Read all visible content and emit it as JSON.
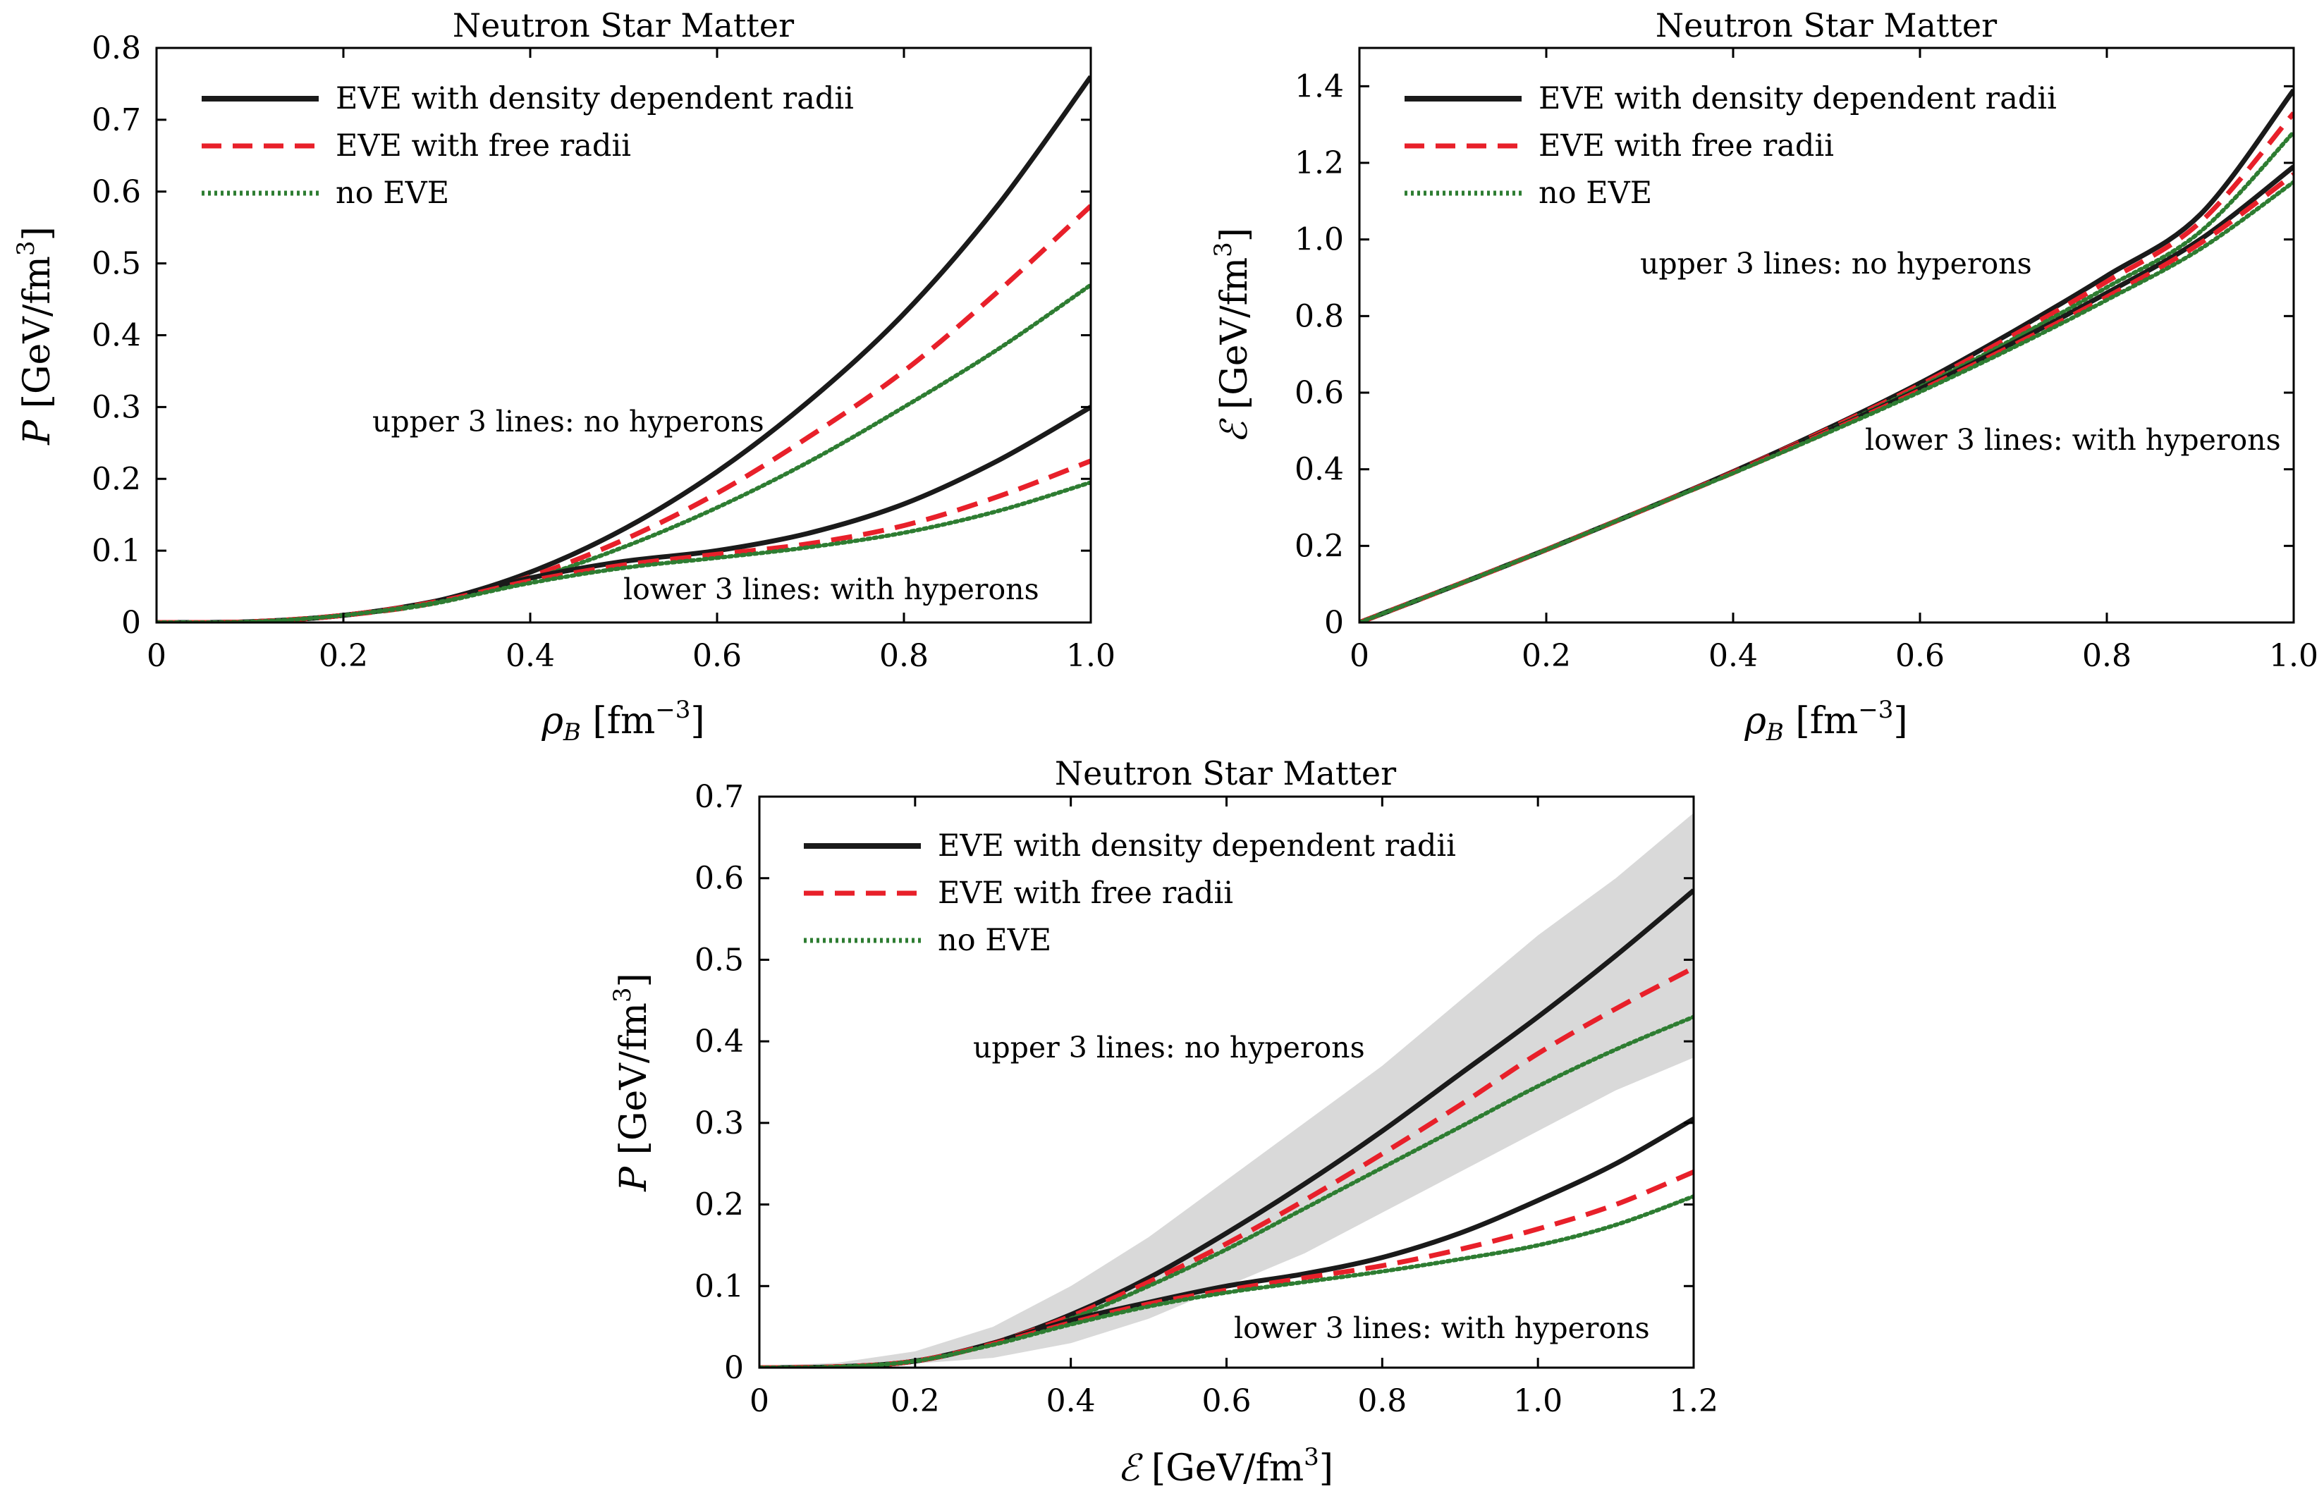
{
  "chart_data": [
    {
      "type": "line",
      "title": "Neutron Star Matter",
      "xlabel": "ρB [fm⁻³]",
      "ylabel": "P [GeV/fm³]",
      "xlim": [
        0,
        1.0
      ],
      "ylim": [
        0,
        0.8
      ],
      "xticks": [
        "0",
        "0.2",
        "0.4",
        "0.6",
        "0.8",
        "1.0"
      ],
      "yticks": [
        "0",
        "0.1",
        "0.2",
        "0.3",
        "0.4",
        "0.5",
        "0.6",
        "0.7",
        "0.8"
      ],
      "legend": {
        "position": "top-left",
        "entries": [
          "EVE with density dependent radii",
          "EVE with free radii",
          "no EVE"
        ]
      },
      "annotations": [
        "upper 3 lines: no hyperons",
        "lower 3 lines: with hyperons"
      ],
      "x": [
        0,
        0.1,
        0.2,
        0.3,
        0.4,
        0.5,
        0.6,
        0.7,
        0.8,
        0.9,
        1.0
      ],
      "series": [
        {
          "name": "EVE with density dependent radii",
          "group": "no hyperons",
          "style": "solid",
          "color": "#1a1a1a",
          "values": [
            0,
            0.001,
            0.01,
            0.03,
            0.07,
            0.13,
            0.21,
            0.31,
            0.43,
            0.58,
            0.76
          ]
        },
        {
          "name": "EVE with free radii",
          "group": "no hyperons",
          "style": "dashed",
          "color": "#e8202a",
          "values": [
            0,
            0.001,
            0.01,
            0.028,
            0.064,
            0.115,
            0.18,
            0.26,
            0.35,
            0.46,
            0.58
          ]
        },
        {
          "name": "no EVE",
          "group": "no hyperons",
          "style": "dotted",
          "color": "#2e7d32",
          "values": [
            0,
            0.001,
            0.01,
            0.027,
            0.06,
            0.105,
            0.16,
            0.225,
            0.3,
            0.38,
            0.47
          ]
        },
        {
          "name": "EVE with density dependent radii",
          "group": "with hyperons",
          "style": "solid",
          "color": "#1a1a1a",
          "values": [
            0,
            0.001,
            0.01,
            0.03,
            0.062,
            0.085,
            0.1,
            0.125,
            0.165,
            0.225,
            0.3
          ]
        },
        {
          "name": "EVE with free radii",
          "group": "with hyperons",
          "style": "dashed",
          "color": "#e8202a",
          "values": [
            0,
            0.001,
            0.01,
            0.029,
            0.058,
            0.08,
            0.095,
            0.11,
            0.135,
            0.175,
            0.225
          ]
        },
        {
          "name": "no EVE",
          "group": "with hyperons",
          "style": "dotted",
          "color": "#2e7d32",
          "values": [
            0,
            0.001,
            0.01,
            0.028,
            0.055,
            0.076,
            0.09,
            0.105,
            0.125,
            0.155,
            0.195
          ]
        }
      ]
    },
    {
      "type": "line",
      "title": "Neutron Star Matter",
      "xlabel": "ρB [fm⁻³]",
      "ylabel": "ℰ [GeV/fm³]",
      "xlim": [
        0,
        1.0
      ],
      "ylim": [
        0,
        1.5
      ],
      "xticks": [
        "0",
        "0.2",
        "0.4",
        "0.6",
        "0.8",
        "1.0"
      ],
      "yticks": [
        "0",
        "0.2",
        "0.4",
        "0.6",
        "0.8",
        "1.0",
        "1.2",
        "1.4"
      ],
      "legend": {
        "position": "top-left",
        "entries": [
          "EVE with density dependent radii",
          "EVE with free radii",
          "no EVE"
        ]
      },
      "annotations": [
        "upper 3 lines: no hyperons",
        "lower 3 lines: with hyperons"
      ],
      "x": [
        0,
        0.1,
        0.2,
        0.3,
        0.4,
        0.5,
        0.6,
        0.7,
        0.8,
        0.9,
        1.0
      ],
      "series": [
        {
          "name": "EVE with density dependent radii",
          "group": "no hyperons",
          "style": "solid",
          "color": "#1a1a1a",
          "values": [
            0,
            0.094,
            0.19,
            0.29,
            0.394,
            0.505,
            0.625,
            0.76,
            0.905,
            1.065,
            1.39
          ]
        },
        {
          "name": "EVE with free radii",
          "group": "no hyperons",
          "style": "dashed",
          "color": "#e8202a",
          "values": [
            0,
            0.094,
            0.19,
            0.29,
            0.393,
            0.503,
            0.62,
            0.75,
            0.89,
            1.045,
            1.33
          ]
        },
        {
          "name": "no EVE",
          "group": "no hyperons",
          "style": "dotted",
          "color": "#2e7d32",
          "values": [
            0,
            0.094,
            0.19,
            0.29,
            0.392,
            0.5,
            0.615,
            0.74,
            0.875,
            1.02,
            1.28
          ]
        },
        {
          "name": "EVE with density dependent radii",
          "group": "with hyperons",
          "style": "solid",
          "color": "#1a1a1a",
          "values": [
            0,
            0.094,
            0.19,
            0.29,
            0.392,
            0.498,
            0.61,
            0.73,
            0.86,
            1.0,
            1.19
          ]
        },
        {
          "name": "EVE with free radii",
          "group": "with hyperons",
          "style": "dashed",
          "color": "#e8202a",
          "values": [
            0,
            0.094,
            0.19,
            0.29,
            0.391,
            0.496,
            0.606,
            0.724,
            0.85,
            0.99,
            1.17
          ]
        },
        {
          "name": "no EVE",
          "group": "with hyperons",
          "style": "dotted",
          "color": "#2e7d32",
          "values": [
            0,
            0.094,
            0.19,
            0.29,
            0.39,
            0.494,
            0.602,
            0.718,
            0.842,
            0.975,
            1.15
          ]
        }
      ]
    },
    {
      "type": "line",
      "title": "Neutron Star Matter",
      "xlabel": "ℰ [GeV/fm³]",
      "ylabel": "P [GeV/fm³]",
      "xlim": [
        0,
        1.2
      ],
      "ylim": [
        0,
        0.7
      ],
      "xticks": [
        "0",
        "0.2",
        "0.4",
        "0.6",
        "0.8",
        "1.0",
        "1.2"
      ],
      "yticks": [
        "0",
        "0.1",
        "0.2",
        "0.3",
        "0.4",
        "0.5",
        "0.6",
        "0.7"
      ],
      "legend": {
        "position": "top-left",
        "entries": [
          "EVE with density dependent radii",
          "EVE with free radii",
          "no EVE"
        ]
      },
      "annotations": [
        "upper 3 lines: no hyperons",
        "lower 3 lines: with hyperons"
      ],
      "band": {
        "name": "shaded constraint band",
        "color": "#d9d9d9",
        "x": [
          0,
          0.1,
          0.2,
          0.3,
          0.4,
          0.5,
          0.6,
          0.7,
          0.8,
          0.9,
          1.0,
          1.1,
          1.2
        ],
        "upper": [
          0.002,
          0.006,
          0.02,
          0.05,
          0.1,
          0.16,
          0.23,
          0.3,
          0.37,
          0.45,
          0.53,
          0.6,
          0.68
        ],
        "lower": [
          0,
          0.001,
          0.005,
          0.012,
          0.03,
          0.06,
          0.1,
          0.14,
          0.19,
          0.24,
          0.29,
          0.34,
          0.38
        ]
      },
      "x": [
        0,
        0.1,
        0.2,
        0.3,
        0.4,
        0.5,
        0.6,
        0.7,
        0.8,
        0.9,
        1.0,
        1.1,
        1.2
      ],
      "series": [
        {
          "name": "EVE with density dependent radii",
          "group": "no hyperons",
          "style": "solid",
          "color": "#1a1a1a",
          "values": [
            0,
            0.001,
            0.008,
            0.03,
            0.065,
            0.11,
            0.165,
            0.225,
            0.29,
            0.36,
            0.43,
            0.505,
            0.585
          ]
        },
        {
          "name": "EVE with free radii",
          "group": "no hyperons",
          "style": "dashed",
          "color": "#e8202a",
          "values": [
            0,
            0.001,
            0.008,
            0.03,
            0.063,
            0.105,
            0.152,
            0.205,
            0.262,
            0.322,
            0.385,
            0.44,
            0.49
          ]
        },
        {
          "name": "no EVE",
          "group": "no hyperons",
          "style": "dotted",
          "color": "#2e7d32",
          "values": [
            0,
            0.001,
            0.008,
            0.029,
            0.06,
            0.1,
            0.145,
            0.195,
            0.245,
            0.295,
            0.345,
            0.39,
            0.43
          ]
        },
        {
          "name": "EVE with density dependent radii",
          "group": "with hyperons",
          "style": "solid",
          "color": "#1a1a1a",
          "values": [
            0,
            0.001,
            0.008,
            0.03,
            0.058,
            0.08,
            0.1,
            0.115,
            0.135,
            0.165,
            0.205,
            0.25,
            0.305
          ]
        },
        {
          "name": "EVE with free radii",
          "group": "with hyperons",
          "style": "dashed",
          "color": "#e8202a",
          "values": [
            0,
            0.001,
            0.008,
            0.029,
            0.055,
            0.078,
            0.095,
            0.11,
            0.125,
            0.145,
            0.17,
            0.2,
            0.24
          ]
        },
        {
          "name": "no EVE",
          "group": "with hyperons",
          "style": "dotted",
          "color": "#2e7d32",
          "values": [
            0,
            0.001,
            0.008,
            0.028,
            0.053,
            0.075,
            0.092,
            0.105,
            0.118,
            0.133,
            0.15,
            0.175,
            0.21
          ]
        }
      ]
    }
  ]
}
